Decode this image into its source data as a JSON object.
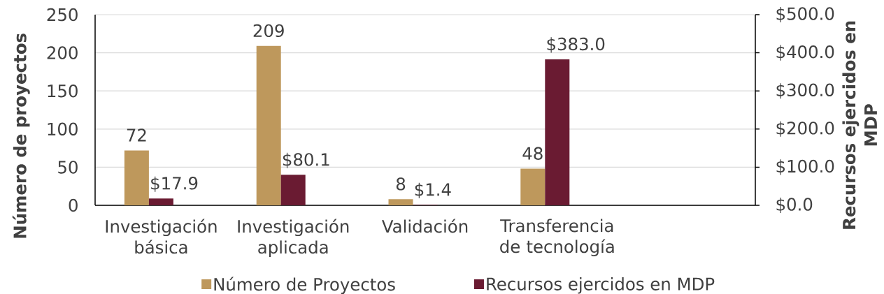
{
  "chart_data": {
    "type": "bar",
    "categories": [
      "Investigación básica",
      "Investigación aplicada",
      "Validación",
      "Transferencia de tecnología",
      null
    ],
    "series": [
      {
        "name": "Número de Proyectos",
        "color": "#BE985C",
        "values": [
          72,
          209,
          8,
          48,
          null
        ],
        "value_labels": [
          "72",
          "209",
          "8",
          "48",
          null
        ]
      },
      {
        "name": "Recursos ejercidos en MDP",
        "color": "#6A1B32",
        "values": [
          17.9,
          80.1,
          1.4,
          383.0,
          null
        ],
        "value_labels": [
          "$17.9",
          "$80.1",
          "$1.4",
          "$383.0",
          null
        ],
        "axis": "y2"
      }
    ],
    "ylabel": "Número de proyectos",
    "y2label": "Recursos ejercidos en MDP",
    "ylim": [
      0,
      250
    ],
    "yticks": [
      0,
      50,
      100,
      150,
      200,
      250
    ],
    "y2lim": [
      0,
      500
    ],
    "y2ticks": [
      {
        "value": 0,
        "label": "$0.0"
      },
      {
        "value": 100,
        "label": "$100.0"
      },
      {
        "value": 200,
        "label": "$200.0"
      },
      {
        "value": 300,
        "label": "$300.0"
      },
      {
        "value": 400,
        "label": "$400.0"
      },
      {
        "value": 500,
        "label": "$500.0"
      }
    ],
    "grid": "y",
    "legend": "bottom"
  }
}
